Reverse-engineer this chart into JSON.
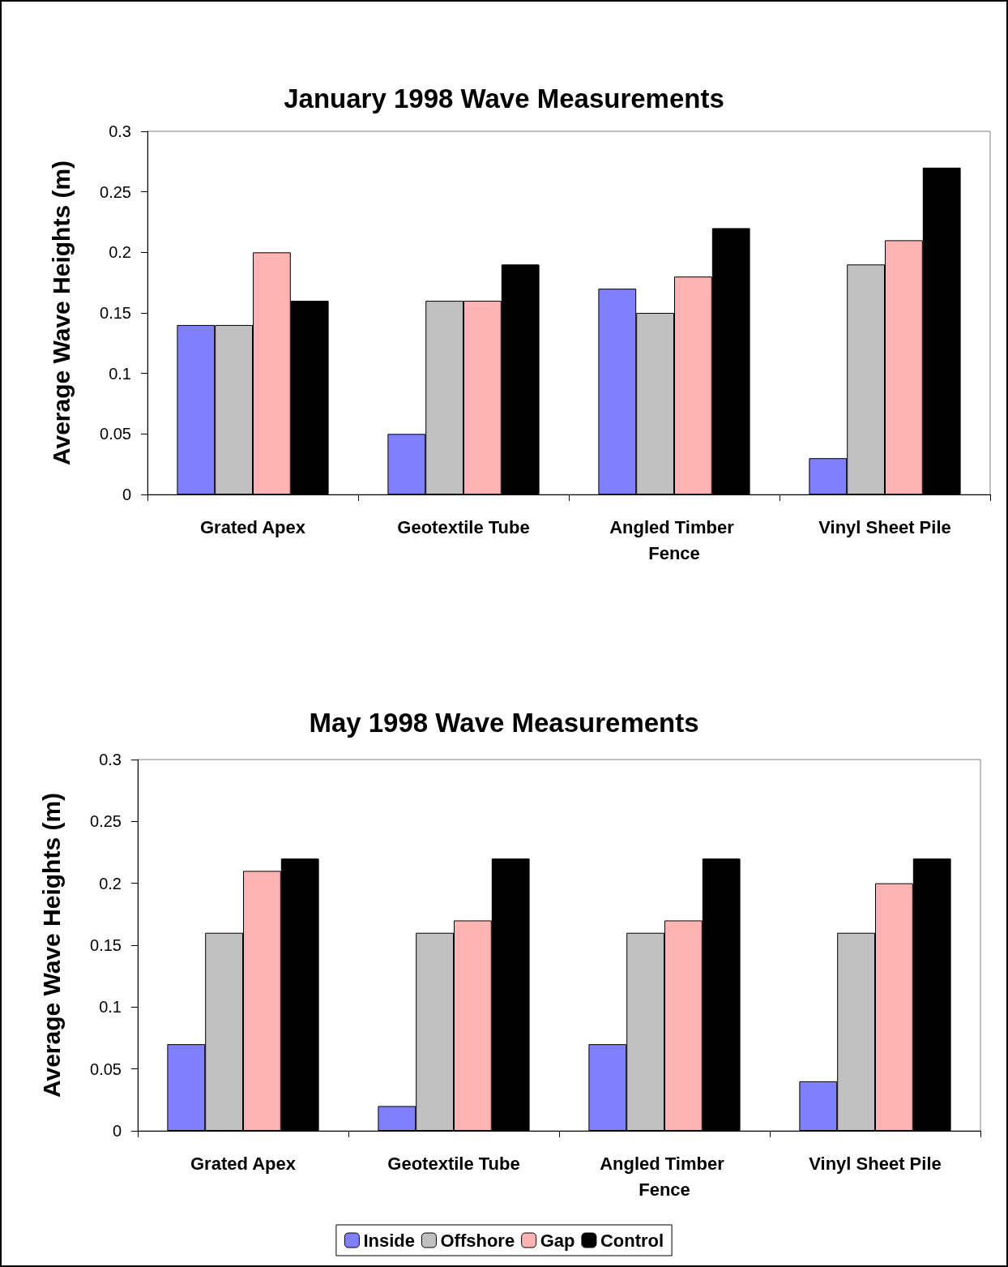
{
  "chart_data": [
    {
      "type": "bar",
      "title": "January 1998 Wave Measurements",
      "ylabel": "Average Wave Heights (m)",
      "categories": [
        "Grated Apex",
        "Geotextile Tube",
        "Angled Timber Fence",
        "Vinyl Sheet Pile"
      ],
      "series": [
        {
          "color": "#8080ff",
          "values": [
            0.14,
            0.05,
            0.17,
            0.03
          ]
        },
        {
          "color": "#c0c0c0",
          "values": [
            0.14,
            0.16,
            0.15,
            0.19
          ]
        },
        {
          "color": "#ffb3b3",
          "values": [
            0.2,
            0.16,
            0.18,
            0.21
          ]
        },
        {
          "color": "#000000",
          "values": [
            0.16,
            0.19,
            0.22,
            0.27
          ]
        }
      ],
      "ylim": [
        0,
        0.3
      ],
      "yticks": [
        0,
        0.05,
        0.1,
        0.15,
        0.2,
        0.25,
        0.3
      ],
      "grid": false,
      "legend": false
    },
    {
      "type": "bar",
      "title": "May 1998 Wave Measurements",
      "ylabel": "Average Wave Heights (m)",
      "categories": [
        "Grated Apex",
        "Geotextile Tube",
        "Angled Timber Fence",
        "Vinyl Sheet Pile"
      ],
      "series": [
        {
          "name": "Inside",
          "color": "#8080ff",
          "values": [
            0.07,
            0.02,
            0.07,
            0.04
          ]
        },
        {
          "name": "Offshore",
          "color": "#c0c0c0",
          "values": [
            0.16,
            0.16,
            0.16,
            0.16
          ]
        },
        {
          "name": "Gap",
          "color": "#ffb3b3",
          "values": [
            0.21,
            0.17,
            0.17,
            0.2
          ]
        },
        {
          "name": "Control",
          "color": "#000000",
          "values": [
            0.22,
            0.22,
            0.22,
            0.22
          ]
        }
      ],
      "ylim": [
        0,
        0.3
      ],
      "yticks": [
        0,
        0.05,
        0.1,
        0.15,
        0.2,
        0.25,
        0.3
      ],
      "grid": false,
      "legend": "bottom"
    }
  ]
}
